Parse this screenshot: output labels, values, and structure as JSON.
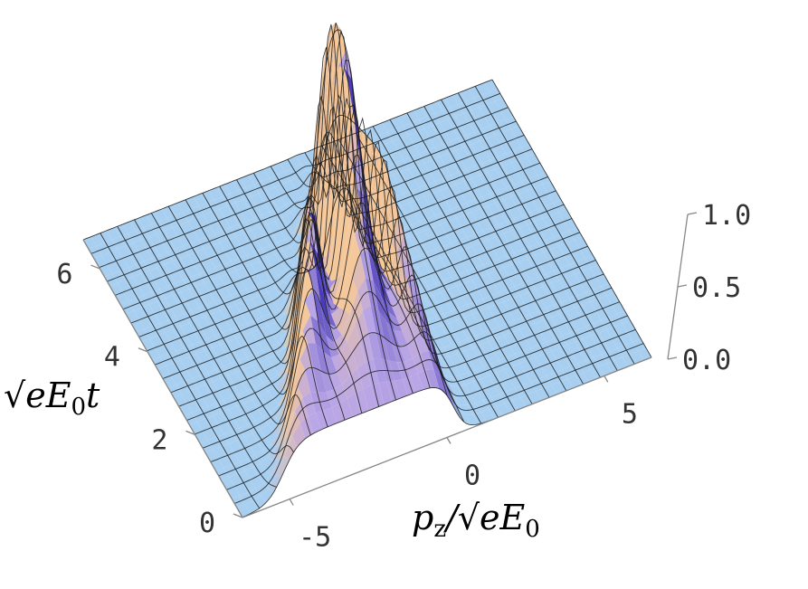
{
  "chart_data": {
    "type": "surface3d",
    "title": "",
    "x_axis": {
      "label_main": "p",
      "label_sub": "z",
      "label_rest": "/√eE",
      "label_rest_sub": "0",
      "range": [
        -6.5,
        6.5
      ],
      "ticks": [
        "-5",
        "0",
        "5"
      ],
      "tick_values": [
        -5,
        0,
        5
      ]
    },
    "y_axis": {
      "label_main": "√eE",
      "label_sub": "0",
      "label_rest": "t",
      "range": [
        0,
        6.7
      ],
      "ticks": [
        "0",
        "2",
        "4",
        "6"
      ],
      "tick_values": [
        0,
        2,
        4,
        6
      ]
    },
    "z_axis": {
      "label": "",
      "range": [
        0,
        1.0
      ],
      "ticks": [
        "0.0",
        "0.5",
        "1.0"
      ],
      "tick_values": [
        0,
        0.5,
        1.0
      ]
    },
    "grid": true,
    "colors": {
      "base": "#a8cff0",
      "mesh": "#1a1a1a",
      "low_shade": "#4a3cb8",
      "mid_shade": "#b9a6e6",
      "high_shade": "#f4c89a",
      "box": "#888888"
    }
  }
}
